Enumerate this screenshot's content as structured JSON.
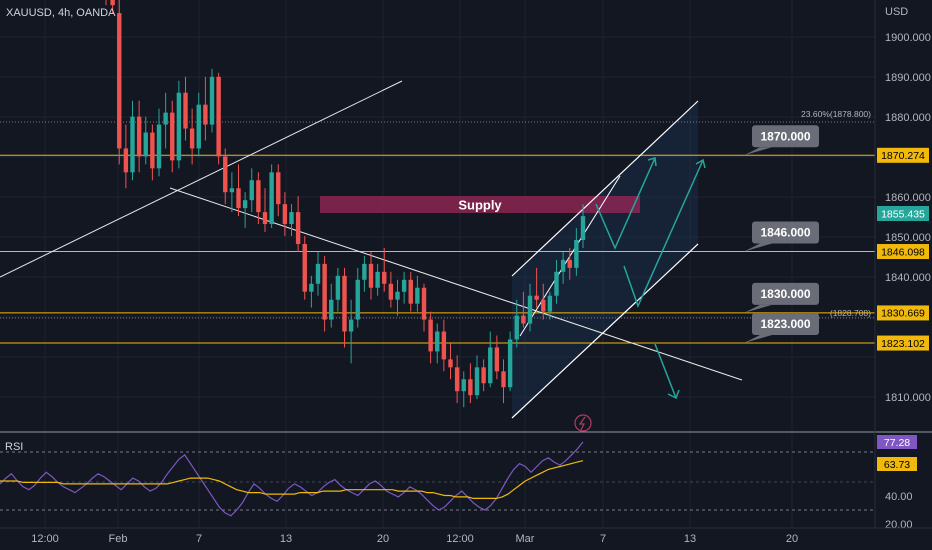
{
  "chart_data": {
    "type": "candlestick",
    "symbol_label": "XAUUSD, 4h, OANDA",
    "currency_label": "USD",
    "price_axis_ticks": [
      "1900.000",
      "1890.000",
      "1880.000",
      "1860.000",
      "1850.000",
      "1840.000",
      "1810.000"
    ],
    "time_axis_ticks": [
      "12:00",
      "Feb",
      "7",
      "13",
      "20",
      "12:00",
      "Mar",
      "7",
      "13",
      "20"
    ],
    "candles": [
      [
        1922,
        1924,
        1908,
        1910
      ],
      [
        1910,
        1913,
        1906,
        1908
      ],
      [
        1906,
        1910,
        1868,
        1872
      ],
      [
        1872,
        1878,
        1862,
        1866
      ],
      [
        1866,
        1884,
        1864,
        1880
      ],
      [
        1880,
        1884,
        1866,
        1870
      ],
      [
        1870,
        1880,
        1868,
        1876
      ],
      [
        1876,
        1878,
        1864,
        1867
      ],
      [
        1867,
        1882,
        1865,
        1878
      ],
      [
        1878,
        1886,
        1872,
        1881
      ],
      [
        1881,
        1884,
        1866,
        1869
      ],
      [
        1869,
        1889,
        1867,
        1886
      ],
      [
        1886,
        1890,
        1874,
        1877
      ],
      [
        1877,
        1882,
        1868,
        1872
      ],
      [
        1872,
        1886,
        1870,
        1883
      ],
      [
        1883,
        1890,
        1874,
        1878
      ],
      [
        1878,
        1892,
        1876,
        1890
      ],
      [
        1890,
        1891,
        1868,
        1870
      ],
      [
        1870,
        1872,
        1858,
        1861
      ],
      [
        1861,
        1866,
        1856,
        1862
      ],
      [
        1862,
        1868,
        1855,
        1857
      ],
      [
        1857,
        1861,
        1852,
        1859
      ],
      [
        1859,
        1867,
        1856,
        1864
      ],
      [
        1864,
        1866,
        1853,
        1856
      ],
      [
        1856,
        1862,
        1851,
        1853
      ],
      [
        1853,
        1868,
        1852,
        1866
      ],
      [
        1866,
        1868,
        1855,
        1858
      ],
      [
        1858,
        1861,
        1850,
        1853
      ],
      [
        1853,
        1858,
        1850,
        1856
      ],
      [
        1856,
        1860,
        1846,
        1848
      ],
      [
        1848,
        1850,
        1834,
        1836
      ],
      [
        1836,
        1840,
        1832,
        1838
      ],
      [
        1838,
        1846,
        1835,
        1843
      ],
      [
        1843,
        1845,
        1826,
        1829
      ],
      [
        1829,
        1838,
        1827,
        1834
      ],
      [
        1834,
        1842,
        1831,
        1840
      ],
      [
        1840,
        1842,
        1822,
        1826
      ],
      [
        1826,
        1834,
        1818,
        1829
      ],
      [
        1829,
        1842,
        1827,
        1839
      ],
      [
        1839,
        1845,
        1836,
        1843
      ],
      [
        1843,
        1846,
        1834,
        1837
      ],
      [
        1837,
        1843,
        1835,
        1841
      ],
      [
        1841,
        1847,
        1836,
        1838
      ],
      [
        1838,
        1841,
        1832,
        1834
      ],
      [
        1834,
        1839,
        1830,
        1836
      ],
      [
        1836,
        1841,
        1833,
        1839
      ],
      [
        1839,
        1841,
        1831,
        1833
      ],
      [
        1833,
        1840,
        1831,
        1837
      ],
      [
        1837,
        1838,
        1826,
        1829
      ],
      [
        1829,
        1831,
        1818,
        1821
      ],
      [
        1821,
        1828,
        1818,
        1826
      ],
      [
        1826,
        1829,
        1816,
        1819
      ],
      [
        1819,
        1823,
        1814,
        1817
      ],
      [
        1817,
        1820,
        1808,
        1811
      ],
      [
        1811,
        1816,
        1807,
        1814
      ],
      [
        1814,
        1818,
        1808,
        1810
      ],
      [
        1810,
        1820,
        1809,
        1817
      ],
      [
        1817,
        1819,
        1811,
        1813
      ],
      [
        1813,
        1826,
        1812,
        1822
      ],
      [
        1822,
        1825,
        1814,
        1816
      ],
      [
        1816,
        1819,
        1808,
        1812
      ],
      [
        1812,
        1826,
        1811,
        1824
      ],
      [
        1824,
        1834,
        1822,
        1830
      ],
      [
        1830,
        1836,
        1827,
        1828
      ],
      [
        1828,
        1838,
        1826,
        1835
      ],
      [
        1835,
        1842,
        1832,
        1834
      ],
      [
        1834,
        1838,
        1829,
        1831
      ],
      [
        1831,
        1836,
        1829,
        1835
      ],
      [
        1835,
        1844,
        1833,
        1841
      ],
      [
        1841,
        1846,
        1838,
        1844
      ],
      [
        1844,
        1847,
        1839,
        1842
      ],
      [
        1842,
        1852,
        1840,
        1849
      ],
      [
        1849,
        1858,
        1847,
        1855
      ]
    ],
    "horizontal_levels": [
      1870.274,
      1846.098,
      1830.669,
      1823.102
    ],
    "level_tags": [
      "1870.274",
      "1846.098",
      "1830.669",
      "1823.102"
    ],
    "last_price_tag": "1855.435",
    "callouts": [
      "1870.000",
      "1846.000",
      "1830.000",
      "1823.000"
    ],
    "fib_labels": [
      "23.60%(1878.800)",
      "(1828.708)"
    ],
    "zone_label": "Supply",
    "rsi": {
      "label": "RSI",
      "current_value": "77.28",
      "ma_value": "63.73",
      "axis_ticks": [
        "40.00",
        "20.00"
      ],
      "values": [
        48,
        52,
        55,
        50,
        46,
        44,
        47,
        52,
        56,
        53,
        49,
        46,
        44,
        42,
        45,
        48,
        52,
        55,
        53,
        50,
        47,
        44,
        48,
        52,
        50,
        46,
        43,
        45,
        49,
        55,
        60,
        65,
        68,
        62,
        56,
        50,
        44,
        38,
        32,
        28,
        26,
        30,
        35,
        42,
        48,
        45,
        41,
        38,
        36,
        40,
        45,
        48,
        46,
        43,
        40,
        42,
        46,
        49,
        51,
        47,
        44,
        42,
        40,
        44,
        48,
        50,
        47,
        43,
        41,
        39,
        42,
        46,
        44,
        41,
        37,
        33,
        30,
        32,
        36,
        40,
        43,
        39,
        35,
        32,
        30,
        33,
        38,
        45,
        52,
        58,
        62,
        60,
        56,
        60,
        64,
        66,
        63,
        61,
        64,
        68,
        72,
        77
      ],
      "ma": [
        50,
        50,
        50,
        50,
        49,
        49,
        49,
        49,
        49,
        49,
        49,
        48,
        48,
        48,
        48,
        48,
        48,
        48,
        48,
        48,
        48,
        48,
        48,
        48,
        48,
        48,
        48,
        48,
        48,
        48,
        49,
        50,
        51,
        52,
        52,
        52,
        52,
        51,
        50,
        48,
        46,
        44,
        43,
        42,
        42,
        42,
        41,
        41,
        41,
        41,
        41,
        41,
        42,
        42,
        42,
        42,
        43,
        43,
        43,
        43,
        44,
        44,
        44,
        44,
        44,
        44,
        44,
        44,
        44,
        43,
        43,
        43,
        43,
        43,
        42,
        42,
        41,
        40,
        40,
        39,
        39,
        39,
        38,
        38,
        38,
        38,
        38,
        39,
        41,
        44,
        47,
        50,
        52,
        54,
        56,
        58,
        59,
        60,
        61,
        62,
        63,
        64
      ]
    }
  }
}
